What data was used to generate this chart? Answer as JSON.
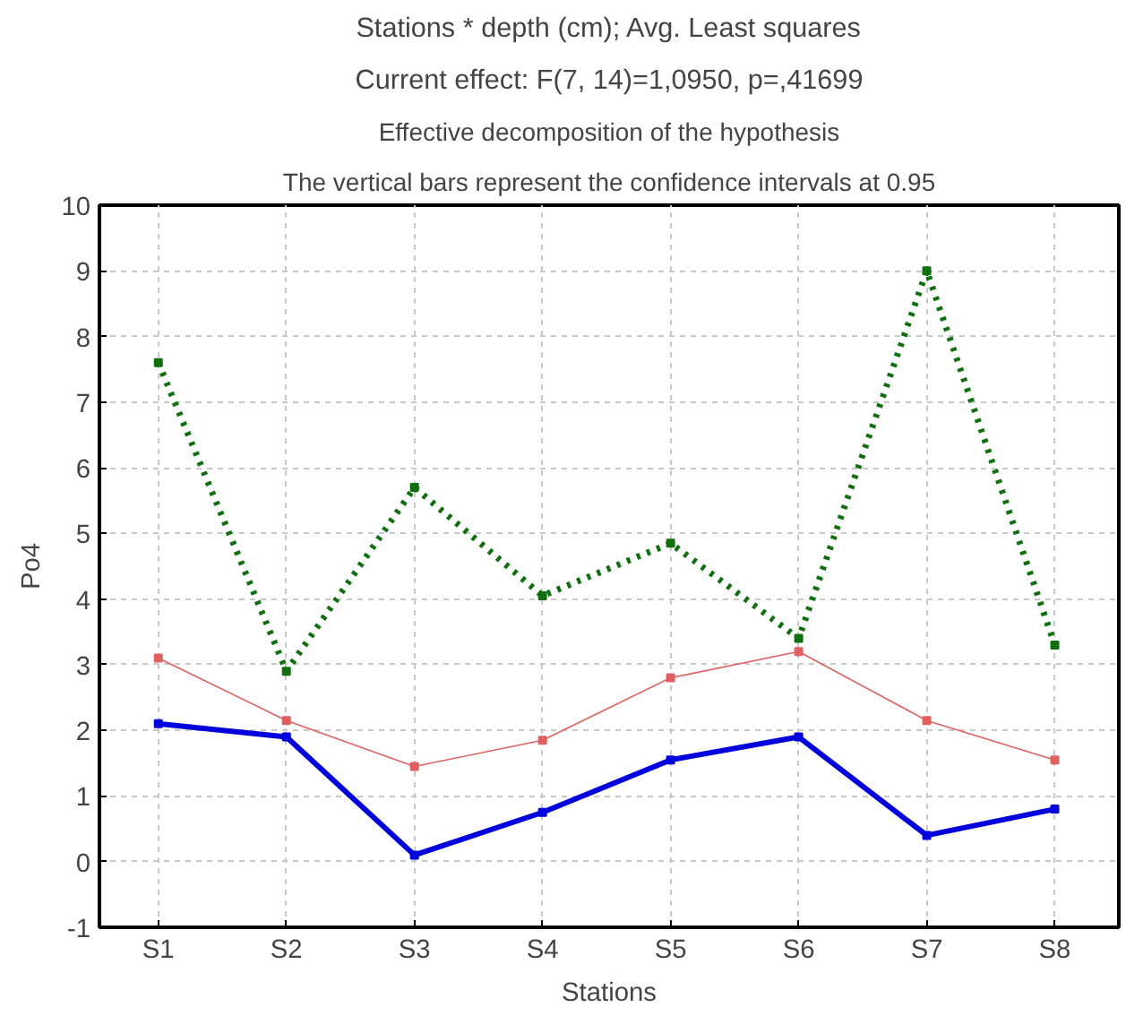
{
  "chart_data": {
    "type": "line",
    "title": "Stations * depth (cm); Avg. Least squares",
    "subtitle": "Current effect: F(7, 14)=1,0950, p=,41699",
    "annotations": [
      "Effective decomposition of the hypothesis",
      "The vertical bars represent the confidence intervals at 0.95"
    ],
    "xlabel": "Stations",
    "ylabel": "Po4",
    "categories": [
      "S1",
      "S2",
      "S3",
      "S4",
      "S5",
      "S6",
      "S7",
      "S8"
    ],
    "series": [
      {
        "color": "#0000dd",
        "line_style": "solid",
        "values": [
          2.1,
          1.9,
          0.1,
          0.75,
          1.55,
          1.9,
          0.4,
          0.8
        ]
      },
      {
        "color": "#e06060",
        "line_style": "solid",
        "values": [
          3.1,
          2.15,
          1.45,
          1.85,
          2.8,
          3.2,
          2.15,
          1.55
        ]
      },
      {
        "color": "#107010",
        "line_style": "dotted",
        "values": [
          7.6,
          2.9,
          5.7,
          4.05,
          4.85,
          3.4,
          9.0,
          3.3
        ]
      }
    ],
    "ylim": [
      -1,
      10
    ],
    "yticks": [
      -1,
      0,
      1,
      2,
      3,
      4,
      5,
      6,
      7,
      8,
      9,
      10
    ],
    "grid": true,
    "marker": "square"
  }
}
